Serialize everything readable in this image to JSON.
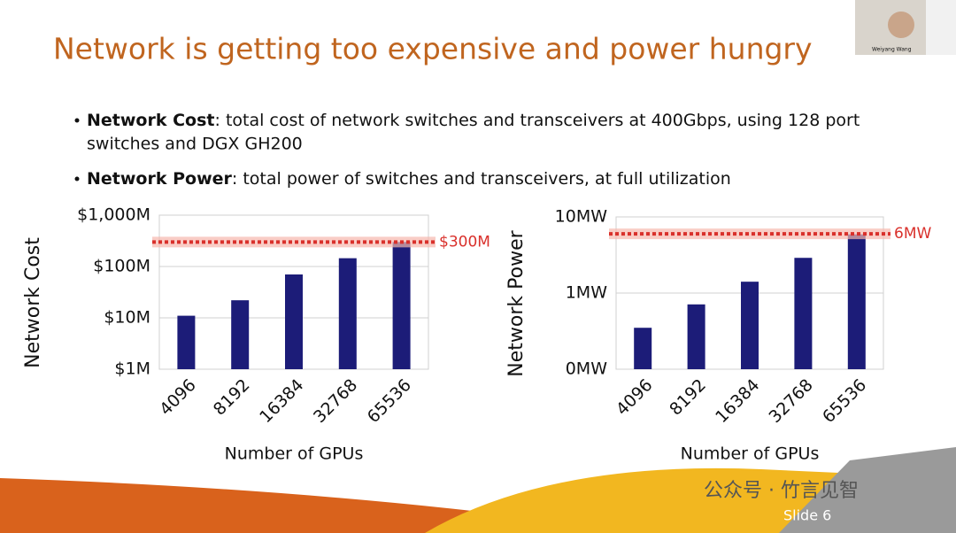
{
  "slide": {
    "title": "Network is getting too expensive and power hungry",
    "bullets": [
      {
        "term": "Network Cost",
        "text": ": total cost of network switches and transceivers at 400Gbps, using 128 port",
        "text2": "switches and DGX GH200"
      },
      {
        "term": "Network Power",
        "text": ": total power of switches and transceivers, at full utilization"
      }
    ],
    "speaker": "Weiyang Wang",
    "watermark": "公众号 · 竹言见智",
    "slide_number": "Slide 6"
  },
  "chart_data": [
    {
      "type": "bar",
      "ylabel": "Network Cost",
      "xlabel": "Number of GPUs",
      "categories": [
        "4096",
        "8192",
        "16384",
        "32768",
        "65536"
      ],
      "values": [
        11,
        22,
        70,
        145,
        300
      ],
      "color": "#1c1c78",
      "log_scale": true,
      "ylim": [
        1,
        1000
      ],
      "yticks": [
        {
          "value": 1,
          "label": "$1M"
        },
        {
          "value": 10,
          "label": "$10M"
        },
        {
          "value": 100,
          "label": "$100M"
        },
        {
          "value": 1000,
          "label": "$1,000M"
        }
      ],
      "grid": true,
      "reference": {
        "value": 300,
        "label": "$300M",
        "color": "#d9302b"
      }
    },
    {
      "type": "bar",
      "ylabel": "Network Power",
      "xlabel": "Number of GPUs",
      "categories": [
        "4096",
        "8192",
        "16384",
        "32768",
        "65536"
      ],
      "values": [
        0.35,
        0.71,
        1.41,
        2.9,
        5.9
      ],
      "color": "#1c1c78",
      "log_scale": true,
      "ylim": [
        0.1,
        10
      ],
      "yticks": [
        {
          "value": 0.1,
          "label": "0MW"
        },
        {
          "value": 1,
          "label": "1MW"
        },
        {
          "value": 10,
          "label": "10MW"
        }
      ],
      "grid": true,
      "reference": {
        "value": 6,
        "label": "6MW",
        "color": "#d9302b"
      }
    }
  ]
}
